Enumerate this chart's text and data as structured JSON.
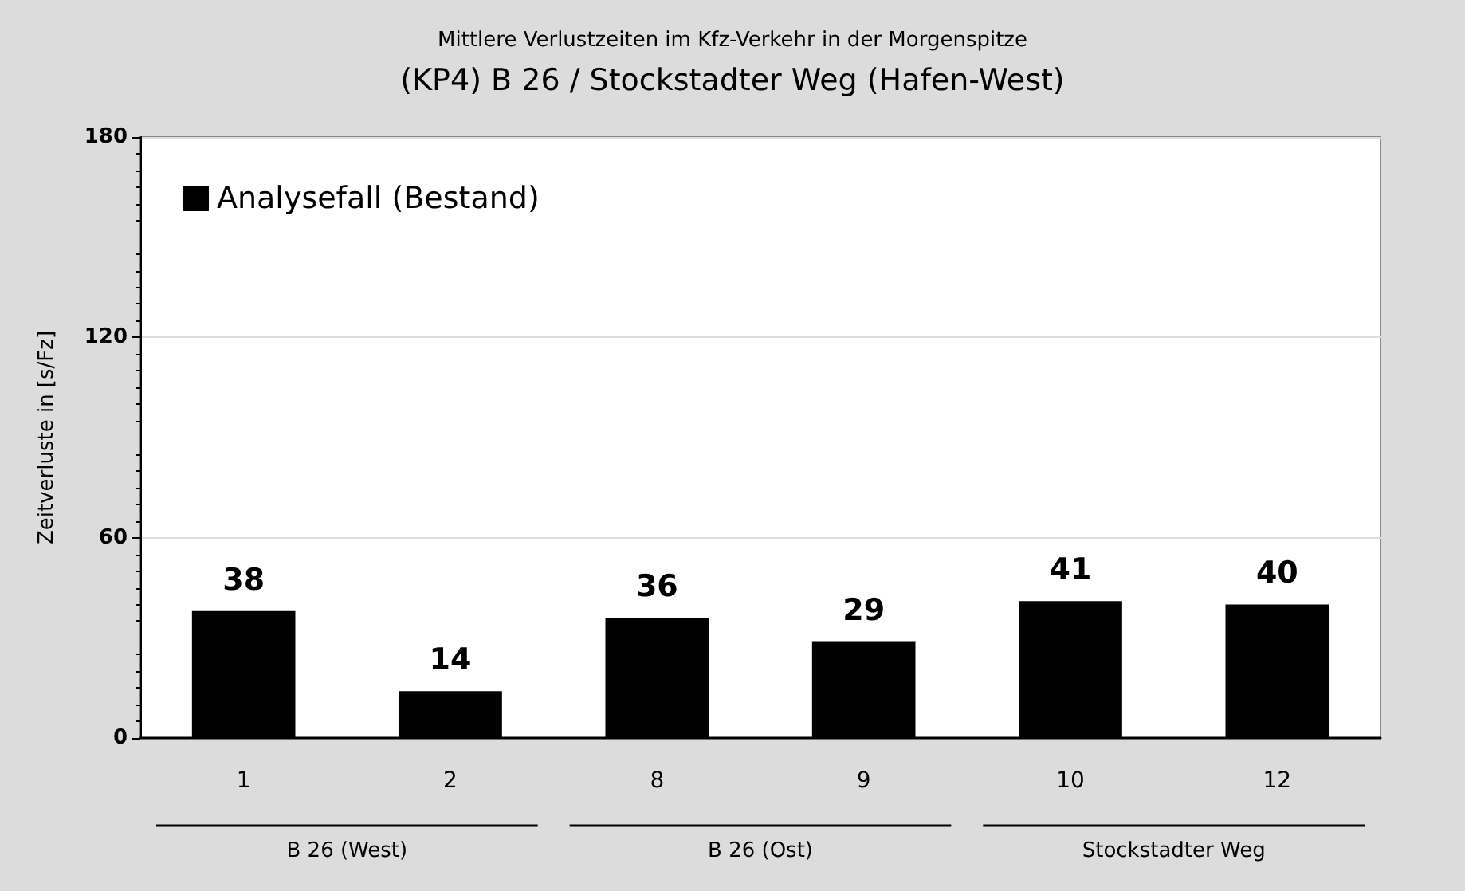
{
  "chart_data": {
    "type": "bar",
    "title": "Mittlere Verlustzeiten im Kfz-Verkehr in der Morgenspitze",
    "subtitle": "(KP4) B 26 / Stockstadter Weg (Hafen-West)",
    "ylabel": "Zeitverluste in [s/Fz]",
    "categories": [
      "1",
      "2",
      "8",
      "9",
      "10",
      "12"
    ],
    "series": [
      {
        "name": "Analysefall (Bestand)",
        "color": "#000000",
        "values": [
          38,
          14,
          36,
          29,
          41,
          40
        ]
      }
    ],
    "ylim": [
      0,
      180
    ],
    "yticks": [
      0,
      60,
      120,
      180
    ],
    "grid": "y",
    "legend": "top left",
    "data_labels": true,
    "annotations": [
      "B 26 (West)",
      "B 26 (Ost)",
      "Stockstadter Weg"
    ]
  }
}
